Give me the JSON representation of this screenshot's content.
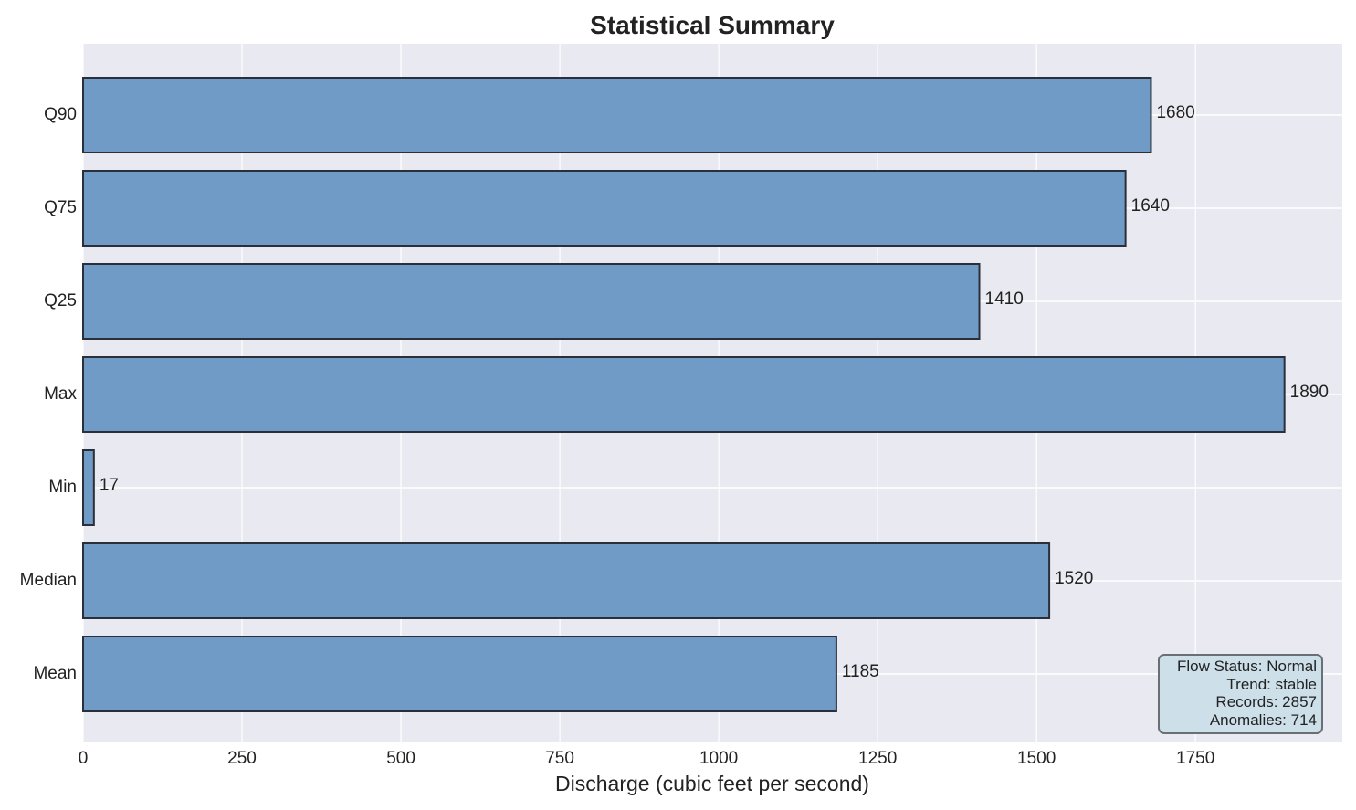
{
  "chart_data": {
    "type": "bar",
    "orientation": "horizontal",
    "title": "Statistical Summary",
    "xlabel": "Discharge (cubic feet per second)",
    "ylabel": "",
    "categories": [
      "Mean",
      "Median",
      "Min",
      "Max",
      "Q25",
      "Q75",
      "Q90"
    ],
    "values": [
      1185,
      1520,
      17,
      1890,
      1410,
      1640,
      1680
    ],
    "data_labels": [
      "1185",
      "1520",
      "17",
      "1890",
      "1410",
      "1640",
      "1680"
    ],
    "xlim": [
      0,
      1981
    ],
    "xticks": [
      0,
      250,
      500,
      750,
      1000,
      1250,
      1500,
      1750
    ],
    "xtick_labels": [
      "0",
      "250",
      "500",
      "750",
      "1000",
      "1250",
      "1500",
      "1750"
    ],
    "grid": true,
    "bar_color": "#6f9bc6",
    "bar_edge_color": "#2b2f3a",
    "background_color": "#e9e9f1",
    "info_box": {
      "placement": "bottom-right",
      "lines": [
        "Flow Status: Normal",
        "Trend: stable",
        "Records: 2857",
        "Anomalies: 714"
      ],
      "background": "#cde0ea",
      "border": "#6a6f73"
    }
  }
}
